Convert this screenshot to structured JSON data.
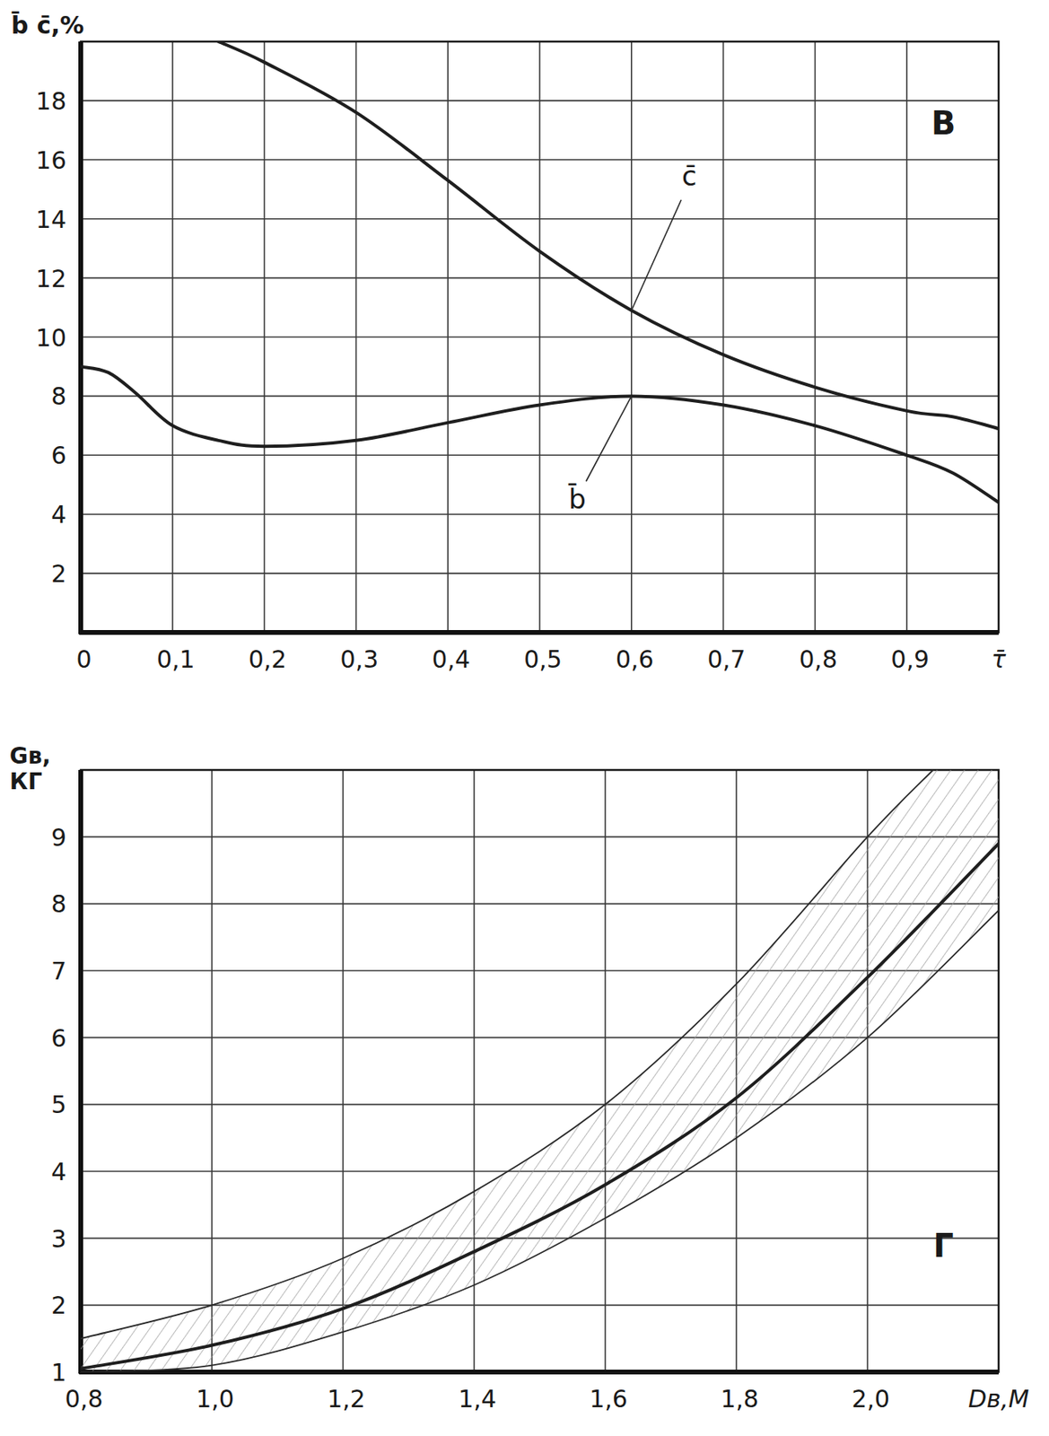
{
  "chart_data": [
    {
      "type": "line",
      "title": "В",
      "ylabel": "b̄ c̄,%",
      "xlabel": "τ̄",
      "xlim": [
        0,
        1
      ],
      "ylim": [
        0,
        20
      ],
      "xticks": [
        0,
        {
          "value": 0.1,
          "label": "0,1"
        },
        {
          "value": 0.2,
          "label": "0,2"
        },
        {
          "value": 0.3,
          "label": "0,3"
        },
        {
          "value": 0.4,
          "label": "0,4"
        },
        {
          "value": 0.5,
          "label": "0,5"
        },
        {
          "value": 0.6,
          "label": "0,6"
        },
        {
          "value": 0.7,
          "label": "0,7"
        },
        {
          "value": 0.8,
          "label": "0,8"
        },
        {
          "value": 0.9,
          "label": "0,9"
        }
      ],
      "yticks": [
        2,
        4,
        6,
        8,
        10,
        12,
        14,
        16,
        18
      ],
      "grid": true,
      "series": [
        {
          "name": "c̄",
          "color": "#1e1e1e",
          "line_style": "solid",
          "x": [
            0.15,
            0.2,
            0.3,
            0.4,
            0.5,
            0.6,
            0.7,
            0.8,
            0.9,
            0.95,
            1.0
          ],
          "values": [
            20.0,
            19.3,
            17.6,
            15.3,
            12.9,
            10.9,
            9.4,
            8.3,
            7.5,
            7.3,
            6.9
          ]
        },
        {
          "name": "b̄",
          "color": "#1e1e1e",
          "line_style": "solid",
          "x": [
            0,
            0.03,
            0.06,
            0.1,
            0.15,
            0.2,
            0.3,
            0.4,
            0.5,
            0.6,
            0.7,
            0.8,
            0.9,
            0.95,
            1.0
          ],
          "values": [
            9.0,
            8.8,
            8.1,
            7.0,
            6.5,
            6.3,
            6.5,
            7.1,
            7.7,
            8.0,
            7.7,
            7.0,
            6.0,
            5.4,
            4.4
          ]
        }
      ]
    },
    {
      "type": "line",
      "title": "Г",
      "ylabel": "Gв, КГ",
      "xlabel": "Dв,М",
      "xlim": [
        0.8,
        2.2
      ],
      "ylim": [
        1,
        10
      ],
      "xticks": [
        {
          "value": 0.8,
          "label": "0,8"
        },
        {
          "value": 1.0,
          "label": "1,0"
        },
        {
          "value": 1.2,
          "label": "1,2"
        },
        {
          "value": 1.4,
          "label": "1,4"
        },
        {
          "value": 1.6,
          "label": "1,6"
        },
        {
          "value": 1.8,
          "label": "1,8"
        },
        {
          "value": 2.0,
          "label": "2,0"
        }
      ],
      "yticks": [
        1,
        2,
        3,
        4,
        5,
        6,
        7,
        8,
        9
      ],
      "grid": true,
      "series": [
        {
          "color": "#2a2a2a",
          "line_style": "thin",
          "x": [
            0.8,
            1.0,
            1.2,
            1.4,
            1.6,
            1.8,
            2.0,
            2.1
          ],
          "values": [
            1.5,
            2.0,
            2.7,
            3.7,
            5.0,
            6.8,
            9.0,
            10.0
          ]
        },
        {
          "color": "#1e1e1e",
          "line_style": "solid",
          "x": [
            0.8,
            1.0,
            1.2,
            1.4,
            1.6,
            1.8,
            2.0,
            2.2
          ],
          "values": [
            1.05,
            1.4,
            1.95,
            2.8,
            3.8,
            5.1,
            6.9,
            8.9
          ]
        },
        {
          "color": "#2a2a2a",
          "line_style": "thin",
          "x": [
            0.8,
            1.0,
            1.2,
            1.4,
            1.6,
            1.8,
            2.0,
            2.2
          ],
          "values": [
            1.0,
            1.1,
            1.6,
            2.3,
            3.3,
            4.5,
            6.0,
            7.9
          ]
        }
      ]
    }
  ]
}
